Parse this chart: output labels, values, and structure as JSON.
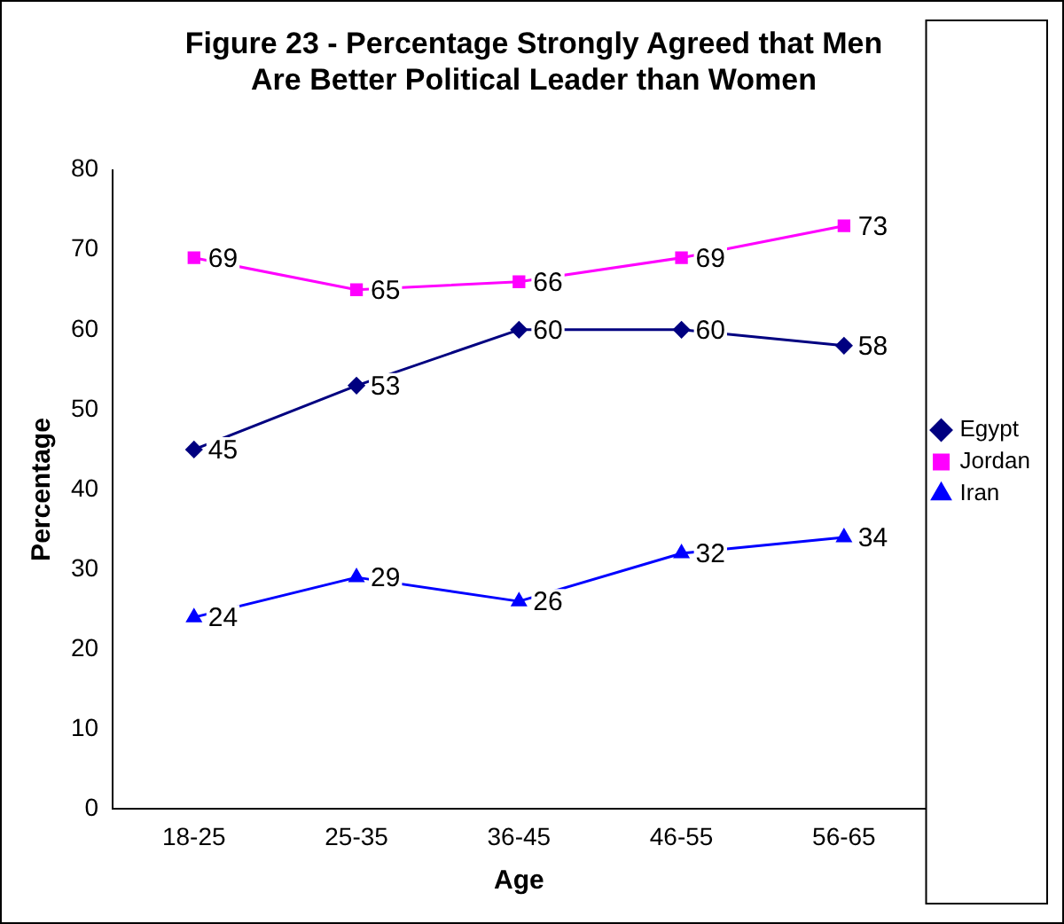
{
  "chart_data": {
    "type": "line",
    "title": "Figure 23 - Percentage Strongly Agreed that Men\nAre Better Political Leader than Women",
    "xlabel": "Age",
    "ylabel": "Percentage",
    "categories": [
      "18-25",
      "25-35",
      "36-45",
      "46-55",
      "56-65"
    ],
    "series": [
      {
        "name": "Egypt",
        "color": "#000080",
        "marker": "diamond",
        "values": [
          45,
          53,
          60,
          60,
          58
        ]
      },
      {
        "name": "Jordan",
        "color": "#ff00ff",
        "marker": "square",
        "values": [
          69,
          65,
          66,
          69,
          73
        ]
      },
      {
        "name": "Iran",
        "color": "#0000ff",
        "marker": "triangle",
        "values": [
          24,
          29,
          26,
          32,
          34
        ]
      }
    ],
    "ylim": [
      0,
      80
    ],
    "yticks": [
      0,
      10,
      20,
      30,
      40,
      50,
      60,
      70,
      80
    ],
    "grid": false,
    "legend": "right",
    "data_labels": true
  }
}
